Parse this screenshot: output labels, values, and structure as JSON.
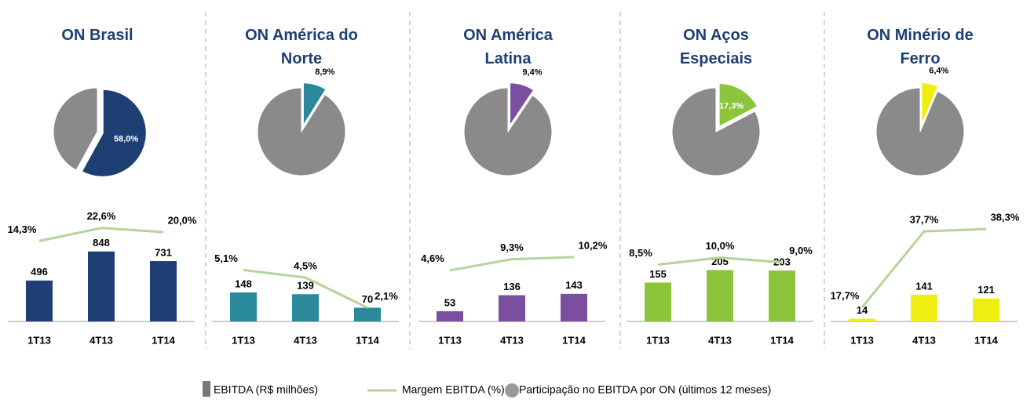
{
  "chart_data": [
    {
      "type": "combo",
      "title": "ON Brasil",
      "pie": {
        "values": [
          58.0
        ],
        "value_labels": [
          "58,0%"
        ],
        "color": "#1e3f73"
      },
      "categories": [
        "1T13",
        "4T13",
        "1T14"
      ],
      "ylim": [
        0,
        1520
      ],
      "y2lim": [
        -37,
        43
      ],
      "series": [
        {
          "color": "#1e3f73",
          "values": [
            496,
            848,
            731
          ]
        },
        {
          "color": "#b5d39a",
          "axis": "y2",
          "values": [
            14.3,
            22.6,
            20.0
          ],
          "value_labels": [
            "14,3%",
            "22,6%",
            "20,0%"
          ]
        }
      ]
    },
    {
      "type": "combo",
      "title": "ON América do Norte",
      "pie": {
        "values": [
          8.9
        ],
        "value_labels": [
          "8,9%"
        ],
        "color": "#2a8a9b"
      },
      "categories": [
        "1T13",
        "4T13",
        "1T14"
      ],
      "ylim": [
        0,
        640
      ],
      "y2lim": [
        1,
        11
      ],
      "series": [
        {
          "color": "#2a8a9b",
          "values": [
            148,
            139,
            70
          ]
        },
        {
          "color": "#b5d39a",
          "axis": "y2",
          "values": [
            5.1,
            4.5,
            2.1
          ],
          "value_labels": [
            "5,1%",
            "4,5%",
            "2,1%"
          ]
        }
      ]
    },
    {
      "type": "combo",
      "title": "ON América Latina",
      "pie": {
        "values": [
          9.4
        ],
        "value_labels": [
          "9,4%"
        ],
        "color": "#7a4f9f"
      },
      "categories": [
        "1T13",
        "4T13",
        "1T14"
      ],
      "ylim": [
        0,
        650
      ],
      "y2lim": [
        -17,
        36
      ],
      "series": [
        {
          "color": "#7a4f9f",
          "values": [
            53,
            136,
            143
          ]
        },
        {
          "color": "#b5d39a",
          "axis": "y2",
          "values": [
            4.6,
            9.3,
            10.2
          ],
          "value_labels": [
            "4,6%",
            "9,3%",
            "10,2%"
          ]
        }
      ]
    },
    {
      "type": "combo",
      "title": "ON Aços Especiais",
      "pie": {
        "values": [
          17.3
        ],
        "value_labels": [
          "17,3%"
        ],
        "color": "#8cc43c"
      },
      "categories": [
        "1T13",
        "4T13",
        "1T14"
      ],
      "ylim": [
        0,
        500
      ],
      "y2lim": [
        -3.5,
        23
      ],
      "series": [
        {
          "color": "#8cc43c",
          "values": [
            155,
            205,
            203
          ]
        },
        {
          "color": "#b5d39a",
          "axis": "y2",
          "values": [
            8.5,
            10.0,
            9.0
          ],
          "value_labels": [
            "8,5%",
            "10,0%",
            "9,0%"
          ]
        }
      ]
    },
    {
      "type": "combo",
      "title": "ON Minério de Ferro",
      "pie": {
        "values": [
          6.4
        ],
        "value_labels": [
          "6,4%"
        ],
        "color": "#eeee10"
      },
      "categories": [
        "1T13",
        "4T13",
        "1T14"
      ],
      "ylim": [
        0,
        660
      ],
      "y2lim": [
        14,
        47
      ],
      "series": [
        {
          "color": "#eeee10",
          "values": [
            14,
            141,
            121
          ]
        },
        {
          "color": "#b5d39a",
          "axis": "y2",
          "values": [
            17.7,
            37.7,
            38.3
          ],
          "value_labels": [
            "17,7%",
            "37,7%",
            "38,3%"
          ]
        }
      ]
    }
  ],
  "legend": [
    "EBITDA (R$ milhões)",
    "Margem EBITDA (%)",
    "Participação no EBITDA por ON (últimos 12 meses)"
  ],
  "legend_colors": [
    "#777777",
    "#b5d39a",
    "#999999"
  ]
}
